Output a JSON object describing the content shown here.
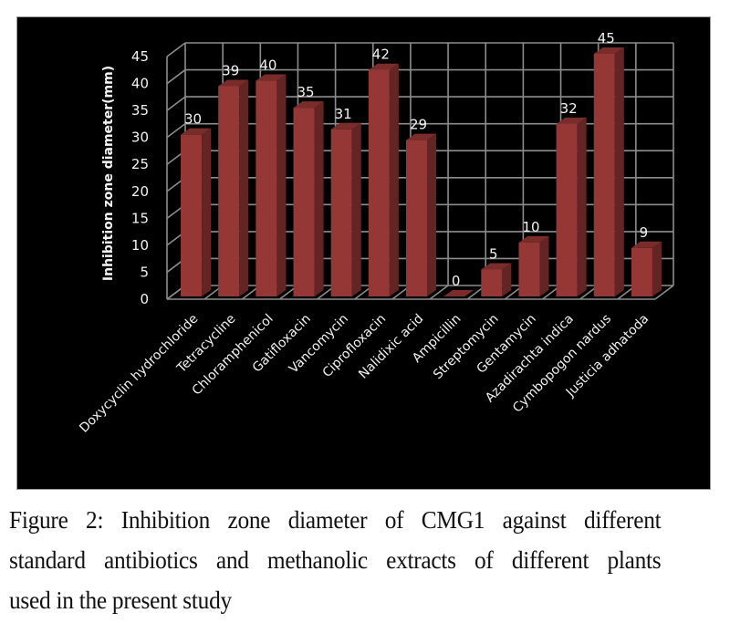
{
  "chart_data": {
    "type": "bar",
    "style": "3d-column",
    "title": "",
    "xlabel": "",
    "ylabel": "Inhibition zone  diameter(mm)",
    "ylim": [
      0,
      45
    ],
    "yticks": [
      "0",
      "5",
      "10",
      "15",
      "20",
      "25",
      "30",
      "35",
      "40",
      "45"
    ],
    "grid": true,
    "legend": "none",
    "categories": [
      "Doxycyclin hydrochloride",
      "Tetracycline",
      "Chloramphenicol",
      "Gatifloxacin",
      "Vancomycin",
      "Ciprofloxacin",
      "Nalidixic acid",
      "Ampicillin",
      "Streptomycin",
      "Gentamycin",
      "Azadirachta indica",
      "Cymbopogon nardus",
      "Justicia adhatoda"
    ],
    "values": [
      30,
      39,
      40,
      35,
      31,
      42,
      29,
      0,
      5,
      10,
      32,
      45,
      9
    ],
    "data_labels": [
      "30",
      "39",
      "40",
      "35",
      "31",
      "42",
      "29",
      "0",
      "5",
      "10",
      "32",
      "45",
      "9"
    ],
    "colors": {
      "background": "#000000",
      "bar_front": "#953735",
      "bar_side": "#632523",
      "bar_top": "#7a2c2a",
      "grid": "#8c8c8c",
      "text": "#f2f2f2"
    }
  },
  "caption": {
    "line1": "Figure 2: Inhibition zone diameter of CMG1 against different",
    "line2": "standard antibiotics and methanolic extracts of different plants",
    "line3": "used in the present study"
  }
}
